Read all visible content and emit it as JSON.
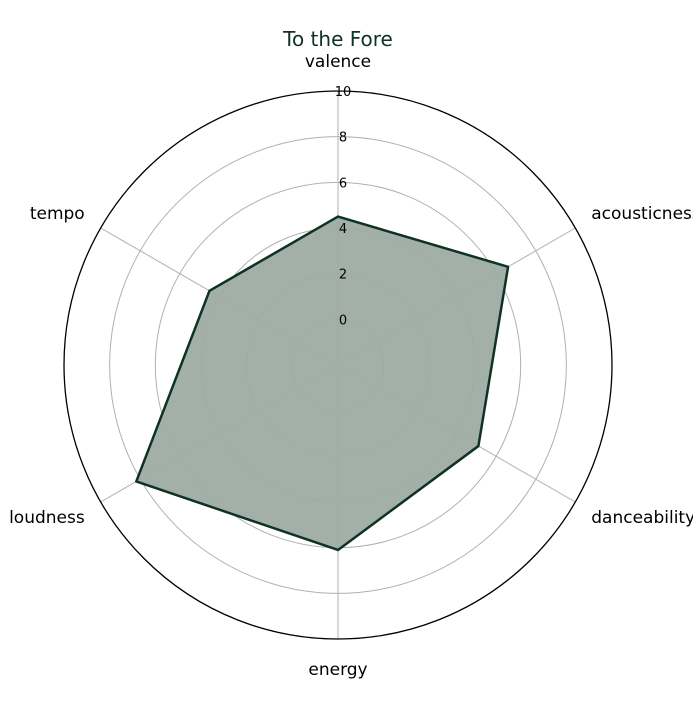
{
  "chart_data": {
    "type": "radar",
    "title": "To the Fore",
    "axes": [
      "valence",
      "acousticness",
      "danceability",
      "energy",
      "loudness",
      "tempo"
    ],
    "series": [
      {
        "name": "To the Fore",
        "values": [
          4.5,
          6.6,
          5.1,
          6.1,
          8.2,
          4.5
        ]
      }
    ],
    "rlim": [
      0,
      10
    ],
    "radial_ticks": [
      0,
      2,
      4,
      6,
      8,
      10
    ],
    "tick_labels": [
      "0",
      "2",
      "4",
      "6",
      "8",
      "10"
    ],
    "r_origin": -2,
    "grid": true,
    "colors": {
      "line": "#0f3323",
      "fill": "#9eaca4",
      "grid": "#b0b0b0",
      "outer": "#000000"
    }
  }
}
